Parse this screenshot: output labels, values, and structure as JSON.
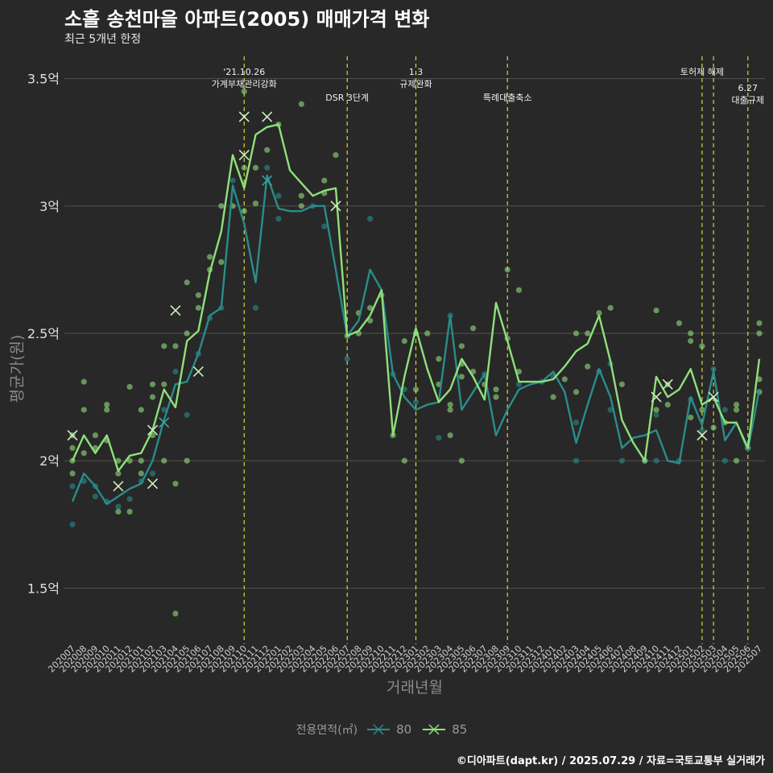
{
  "title": "소흘 송천마을 아파트(2005) 매매가격 변화",
  "subtitle": "최근 5개년 한정",
  "caption": "©디아파트(dapt.kr) / 2025.07.29 / 자료=국토교통부 실거래가",
  "colors": {
    "background": "#282828",
    "grid": "#505050",
    "series80": "#2a8c8c",
    "series85": "#8fe07a",
    "event": "#d7d736"
  },
  "chart_data": {
    "type": "line",
    "xlabel": "거래년월",
    "ylabel": "평균가(원)",
    "ylim": [
      1.28,
      3.6
    ],
    "yticks": [
      {
        "value": 1.5,
        "label": "1.5억"
      },
      {
        "value": 2.0,
        "label": "2억"
      },
      {
        "value": 2.5,
        "label": "2.5억"
      },
      {
        "value": 3.0,
        "label": "3억"
      },
      {
        "value": 3.5,
        "label": "3.5억"
      }
    ],
    "grid": true,
    "legend_title": "전용면적(㎡)",
    "legend_position": "bottom",
    "categories": [
      "202007",
      "202008",
      "202009",
      "202010",
      "202011",
      "202012",
      "202101",
      "202102",
      "202103",
      "202104",
      "202105",
      "202106",
      "202107",
      "202108",
      "202109",
      "202110",
      "202111",
      "202112",
      "202201",
      "202202",
      "202203",
      "202204",
      "202205",
      "202206",
      "202207",
      "202208",
      "202209",
      "202210",
      "202211",
      "202212",
      "202301",
      "202302",
      "202303",
      "202304",
      "202305",
      "202306",
      "202307",
      "202308",
      "202309",
      "202310",
      "202311",
      "202312",
      "202401",
      "202402",
      "202403",
      "202404",
      "202405",
      "202406",
      "202407",
      "202408",
      "202409",
      "202410",
      "202411",
      "202412",
      "202501",
      "202502",
      "202503",
      "202504",
      "202505",
      "202506",
      "202507"
    ],
    "series": [
      {
        "name": "80",
        "color": "#2a8c8c",
        "values": [
          1.84,
          1.95,
          1.9,
          1.83,
          1.86,
          1.89,
          1.91,
          2.0,
          2.16,
          2.3,
          2.31,
          2.42,
          2.57,
          2.6,
          3.08,
          2.93,
          2.7,
          3.12,
          2.99,
          2.98,
          2.98,
          3.0,
          3.0,
          2.75,
          2.49,
          2.55,
          2.75,
          2.67,
          2.34,
          2.25,
          2.2,
          2.22,
          2.23,
          2.57,
          2.2,
          2.27,
          2.34,
          2.1,
          2.2,
          2.28,
          2.3,
          2.31,
          2.35,
          2.27,
          2.07,
          2.22,
          2.36,
          2.25,
          2.05,
          2.09,
          2.1,
          2.12,
          2.0,
          1.99,
          2.25,
          2.14,
          2.35,
          2.08,
          2.15,
          2.04,
          2.28
        ]
      },
      {
        "name": "85",
        "color": "#8fe07a",
        "values": [
          2.0,
          2.1,
          2.03,
          2.1,
          1.96,
          2.02,
          2.03,
          2.12,
          2.28,
          2.21,
          2.47,
          2.51,
          2.74,
          2.9,
          3.2,
          3.07,
          3.28,
          3.31,
          3.32,
          3.14,
          3.09,
          3.04,
          3.06,
          3.07,
          2.49,
          2.51,
          2.57,
          2.67,
          2.1,
          2.33,
          2.52,
          2.36,
          2.23,
          2.28,
          2.4,
          2.33,
          2.24,
          2.62,
          2.47,
          2.31,
          2.31,
          2.31,
          2.32,
          2.37,
          2.43,
          2.46,
          2.57,
          2.39,
          2.16,
          2.07,
          2.0,
          2.33,
          2.25,
          2.28,
          2.36,
          2.22,
          2.25,
          2.15,
          2.15,
          2.05,
          2.4
        ]
      }
    ],
    "points": [
      {
        "i": 0,
        "y": 1.75,
        "s": "80"
      },
      {
        "i": 0,
        "y": 1.9,
        "s": "80"
      },
      {
        "i": 0,
        "y": 1.95,
        "s": "85"
      },
      {
        "i": 0,
        "y": 2.05,
        "s": "85"
      },
      {
        "i": 0,
        "y": 2.1,
        "s": "85"
      },
      {
        "i": 0,
        "y": 2.0,
        "s": "85"
      },
      {
        "i": 1,
        "y": 1.92,
        "s": "80"
      },
      {
        "i": 1,
        "y": 2.2,
        "s": "85"
      },
      {
        "i": 1,
        "y": 2.31,
        "s": "85"
      },
      {
        "i": 1,
        "y": 2.03,
        "s": "85"
      },
      {
        "i": 2,
        "y": 1.9,
        "s": "80"
      },
      {
        "i": 2,
        "y": 1.86,
        "s": "80"
      },
      {
        "i": 2,
        "y": 2.1,
        "s": "85"
      },
      {
        "i": 2,
        "y": 2.05,
        "s": "85"
      },
      {
        "i": 3,
        "y": 1.84,
        "s": "80"
      },
      {
        "i": 3,
        "y": 2.2,
        "s": "85"
      },
      {
        "i": 3,
        "y": 2.08,
        "s": "85"
      },
      {
        "i": 3,
        "y": 2.22,
        "s": "85"
      },
      {
        "i": 4,
        "y": 1.82,
        "s": "80"
      },
      {
        "i": 4,
        "y": 1.95,
        "s": "85"
      },
      {
        "i": 4,
        "y": 2.0,
        "s": "85"
      },
      {
        "i": 4,
        "y": 1.8,
        "s": "85"
      },
      {
        "i": 5,
        "y": 1.85,
        "s": "80"
      },
      {
        "i": 5,
        "y": 2.0,
        "s": "85"
      },
      {
        "i": 5,
        "y": 2.29,
        "s": "85"
      },
      {
        "i": 5,
        "y": 1.8,
        "s": "85"
      },
      {
        "i": 6,
        "y": 1.92,
        "s": "80"
      },
      {
        "i": 6,
        "y": 1.95,
        "s": "85"
      },
      {
        "i": 6,
        "y": 2.2,
        "s": "85"
      },
      {
        "i": 6,
        "y": 2.0,
        "s": "85"
      },
      {
        "i": 7,
        "y": 1.95,
        "s": "80"
      },
      {
        "i": 7,
        "y": 2.1,
        "s": "85"
      },
      {
        "i": 7,
        "y": 2.25,
        "s": "85"
      },
      {
        "i": 7,
        "y": 2.3,
        "s": "85"
      },
      {
        "i": 8,
        "y": 2.2,
        "s": "80"
      },
      {
        "i": 8,
        "y": 2.45,
        "s": "85"
      },
      {
        "i": 8,
        "y": 2.0,
        "s": "85"
      },
      {
        "i": 8,
        "y": 2.3,
        "s": "85"
      },
      {
        "i": 9,
        "y": 2.35,
        "s": "80"
      },
      {
        "i": 9,
        "y": 2.45,
        "s": "85"
      },
      {
        "i": 9,
        "y": 1.4,
        "s": "85"
      },
      {
        "i": 9,
        "y": 1.91,
        "s": "85"
      },
      {
        "i": 10,
        "y": 2.18,
        "s": "80"
      },
      {
        "i": 10,
        "y": 2.5,
        "s": "85"
      },
      {
        "i": 10,
        "y": 2.7,
        "s": "85"
      },
      {
        "i": 10,
        "y": 2.0,
        "s": "85"
      },
      {
        "i": 11,
        "y": 2.42,
        "s": "80"
      },
      {
        "i": 11,
        "y": 2.6,
        "s": "85"
      },
      {
        "i": 11,
        "y": 2.65,
        "s": "85"
      },
      {
        "i": 12,
        "y": 2.56,
        "s": "80"
      },
      {
        "i": 12,
        "y": 2.8,
        "s": "85"
      },
      {
        "i": 12,
        "y": 2.75,
        "s": "85"
      },
      {
        "i": 13,
        "y": 2.6,
        "s": "80"
      },
      {
        "i": 13,
        "y": 3.0,
        "s": "85"
      },
      {
        "i": 13,
        "y": 2.78,
        "s": "85"
      },
      {
        "i": 14,
        "y": 3.1,
        "s": "80"
      },
      {
        "i": 14,
        "y": 3.0,
        "s": "85"
      },
      {
        "i": 15,
        "y": 3.45,
        "s": "85"
      },
      {
        "i": 15,
        "y": 3.15,
        "s": "85"
      },
      {
        "i": 15,
        "y": 2.98,
        "s": "85"
      },
      {
        "i": 16,
        "y": 2.6,
        "s": "80"
      },
      {
        "i": 16,
        "y": 3.15,
        "s": "85"
      },
      {
        "i": 16,
        "y": 3.01,
        "s": "85"
      },
      {
        "i": 17,
        "y": 3.15,
        "s": "80"
      },
      {
        "i": 17,
        "y": 3.22,
        "s": "85"
      },
      {
        "i": 18,
        "y": 2.95,
        "s": "80"
      },
      {
        "i": 18,
        "y": 3.04,
        "s": "80"
      },
      {
        "i": 18,
        "y": 3.32,
        "s": "85"
      },
      {
        "i": 20,
        "y": 3.4,
        "s": "85"
      },
      {
        "i": 20,
        "y": 3.04,
        "s": "85"
      },
      {
        "i": 20,
        "y": 3.0,
        "s": "85"
      },
      {
        "i": 21,
        "y": 3.0,
        "s": "80"
      },
      {
        "i": 22,
        "y": 2.92,
        "s": "80"
      },
      {
        "i": 22,
        "y": 3.1,
        "s": "85"
      },
      {
        "i": 22,
        "y": 3.05,
        "s": "85"
      },
      {
        "i": 23,
        "y": 3.2,
        "s": "85"
      },
      {
        "i": 24,
        "y": 2.4,
        "s": "80"
      },
      {
        "i": 24,
        "y": 2.49,
        "s": "85"
      },
      {
        "i": 25,
        "y": 2.58,
        "s": "85"
      },
      {
        "i": 25,
        "y": 2.5,
        "s": "85"
      },
      {
        "i": 26,
        "y": 2.95,
        "s": "80"
      },
      {
        "i": 26,
        "y": 2.6,
        "s": "85"
      },
      {
        "i": 26,
        "y": 2.55,
        "s": "85"
      },
      {
        "i": 27,
        "y": 2.65,
        "s": "85"
      },
      {
        "i": 28,
        "y": 2.34,
        "s": "80"
      },
      {
        "i": 28,
        "y": 2.1,
        "s": "85"
      },
      {
        "i": 29,
        "y": 2.28,
        "s": "80"
      },
      {
        "i": 29,
        "y": 2.0,
        "s": "85"
      },
      {
        "i": 29,
        "y": 2.47,
        "s": "85"
      },
      {
        "i": 30,
        "y": 2.23,
        "s": "80"
      },
      {
        "i": 30,
        "y": 2.28,
        "s": "85"
      },
      {
        "i": 30,
        "y": 2.5,
        "s": "85"
      },
      {
        "i": 31,
        "y": 2.5,
        "s": "85"
      },
      {
        "i": 32,
        "y": 2.09,
        "s": "80"
      },
      {
        "i": 32,
        "y": 2.4,
        "s": "85"
      },
      {
        "i": 32,
        "y": 2.3,
        "s": "85"
      },
      {
        "i": 33,
        "y": 2.57,
        "s": "80"
      },
      {
        "i": 33,
        "y": 2.2,
        "s": "85"
      },
      {
        "i": 33,
        "y": 2.1,
        "s": "85"
      },
      {
        "i": 33,
        "y": 2.22,
        "s": "85"
      },
      {
        "i": 34,
        "y": 2.45,
        "s": "85"
      },
      {
        "i": 34,
        "y": 2.38,
        "s": "85"
      },
      {
        "i": 34,
        "y": 2.0,
        "s": "85"
      },
      {
        "i": 34,
        "y": 2.33,
        "s": "85"
      },
      {
        "i": 35,
        "y": 2.52,
        "s": "85"
      },
      {
        "i": 35,
        "y": 2.35,
        "s": "85"
      },
      {
        "i": 36,
        "y": 2.34,
        "s": "80"
      },
      {
        "i": 36,
        "y": 2.3,
        "s": "85"
      },
      {
        "i": 37,
        "y": 2.25,
        "s": "85"
      },
      {
        "i": 37,
        "y": 2.28,
        "s": "85"
      },
      {
        "i": 38,
        "y": 2.75,
        "s": "85"
      },
      {
        "i": 38,
        "y": 2.48,
        "s": "85"
      },
      {
        "i": 39,
        "y": 2.67,
        "s": "85"
      },
      {
        "i": 39,
        "y": 2.35,
        "s": "85"
      },
      {
        "i": 39,
        "y": 2.3,
        "s": "80"
      },
      {
        "i": 41,
        "y": 2.31,
        "s": "80"
      },
      {
        "i": 42,
        "y": 2.33,
        "s": "80"
      },
      {
        "i": 42,
        "y": 2.25,
        "s": "85"
      },
      {
        "i": 43,
        "y": 2.32,
        "s": "85"
      },
      {
        "i": 44,
        "y": 2.15,
        "s": "80"
      },
      {
        "i": 44,
        "y": 2.0,
        "s": "80"
      },
      {
        "i": 44,
        "y": 2.5,
        "s": "85"
      },
      {
        "i": 44,
        "y": 2.27,
        "s": "85"
      },
      {
        "i": 45,
        "y": 2.5,
        "s": "85"
      },
      {
        "i": 45,
        "y": 2.37,
        "s": "85"
      },
      {
        "i": 46,
        "y": 2.35,
        "s": "80"
      },
      {
        "i": 46,
        "y": 2.58,
        "s": "85"
      },
      {
        "i": 47,
        "y": 2.38,
        "s": "80"
      },
      {
        "i": 47,
        "y": 2.2,
        "s": "80"
      },
      {
        "i": 47,
        "y": 2.6,
        "s": "85"
      },
      {
        "i": 48,
        "y": 2.3,
        "s": "85"
      },
      {
        "i": 48,
        "y": 2.0,
        "s": "80"
      },
      {
        "i": 50,
        "y": 2.0,
        "s": "80"
      },
      {
        "i": 50,
        "y": 2.0,
        "s": "85"
      },
      {
        "i": 51,
        "y": 2.0,
        "s": "80"
      },
      {
        "i": 51,
        "y": 2.18,
        "s": "80"
      },
      {
        "i": 51,
        "y": 2.59,
        "s": "85"
      },
      {
        "i": 51,
        "y": 2.2,
        "s": "85"
      },
      {
        "i": 52,
        "y": 2.22,
        "s": "85"
      },
      {
        "i": 52,
        "y": 2.3,
        "s": "85"
      },
      {
        "i": 53,
        "y": 2.0,
        "s": "80"
      },
      {
        "i": 53,
        "y": 2.54,
        "s": "85"
      },
      {
        "i": 54,
        "y": 2.24,
        "s": "80"
      },
      {
        "i": 54,
        "y": 2.47,
        "s": "85"
      },
      {
        "i": 54,
        "y": 2.5,
        "s": "85"
      },
      {
        "i": 54,
        "y": 2.17,
        "s": "85"
      },
      {
        "i": 55,
        "y": 2.12,
        "s": "80"
      },
      {
        "i": 55,
        "y": 2.45,
        "s": "85"
      },
      {
        "i": 55,
        "y": 2.2,
        "s": "85"
      },
      {
        "i": 56,
        "y": 2.36,
        "s": "80"
      },
      {
        "i": 56,
        "y": 2.13,
        "s": "85"
      },
      {
        "i": 57,
        "y": 2.2,
        "s": "80"
      },
      {
        "i": 57,
        "y": 2.0,
        "s": "80"
      },
      {
        "i": 57,
        "y": 2.15,
        "s": "85"
      },
      {
        "i": 58,
        "y": 2.2,
        "s": "85"
      },
      {
        "i": 58,
        "y": 2.22,
        "s": "85"
      },
      {
        "i": 58,
        "y": 2.0,
        "s": "85"
      },
      {
        "i": 59,
        "y": 2.05,
        "s": "85"
      },
      {
        "i": 60,
        "y": 2.5,
        "s": "85"
      },
      {
        "i": 60,
        "y": 2.54,
        "s": "85"
      },
      {
        "i": 60,
        "y": 2.32,
        "s": "85"
      },
      {
        "i": 60,
        "y": 2.27,
        "s": "85"
      }
    ],
    "crosses": [
      {
        "i": 0,
        "y": 2.1,
        "s": "85"
      },
      {
        "i": 4,
        "y": 1.9,
        "s": "85"
      },
      {
        "i": 7,
        "y": 1.91,
        "s": "85"
      },
      {
        "i": 7,
        "y": 2.12,
        "s": "85"
      },
      {
        "i": 8,
        "y": 2.15,
        "s": "80"
      },
      {
        "i": 9,
        "y": 2.59,
        "s": "85"
      },
      {
        "i": 11,
        "y": 2.35,
        "s": "85"
      },
      {
        "i": 15,
        "y": 3.35,
        "s": "85"
      },
      {
        "i": 15,
        "y": 3.2,
        "s": "85"
      },
      {
        "i": 17,
        "y": 3.35,
        "s": "85"
      },
      {
        "i": 17,
        "y": 3.1,
        "s": "80"
      },
      {
        "i": 23,
        "y": 3.0,
        "s": "85"
      },
      {
        "i": 51,
        "y": 2.25,
        "s": "85"
      },
      {
        "i": 52,
        "y": 2.3,
        "s": "85"
      },
      {
        "i": 55,
        "y": 2.1,
        "s": "85"
      },
      {
        "i": 56,
        "y": 2.25,
        "s": "85"
      }
    ],
    "events": [
      {
        "i": 15,
        "lines": [
          "'21.10.26",
          "가계부채관리강화"
        ],
        "row": 0
      },
      {
        "i": 24,
        "lines": [
          "DSR 3단계"
        ],
        "row": 1
      },
      {
        "i": 30,
        "lines": [
          "1.3",
          "규제완화"
        ],
        "row": 0
      },
      {
        "i": 38,
        "lines": [
          "특례대출축소"
        ],
        "row": 1
      },
      {
        "i": 55,
        "lines": [
          "토허제 해제"
        ],
        "row": 0
      },
      {
        "i": 56,
        "lines": [],
        "row": 0
      },
      {
        "i": 59,
        "lines": [
          "6.27",
          "대출규제"
        ],
        "row": 2
      }
    ]
  }
}
